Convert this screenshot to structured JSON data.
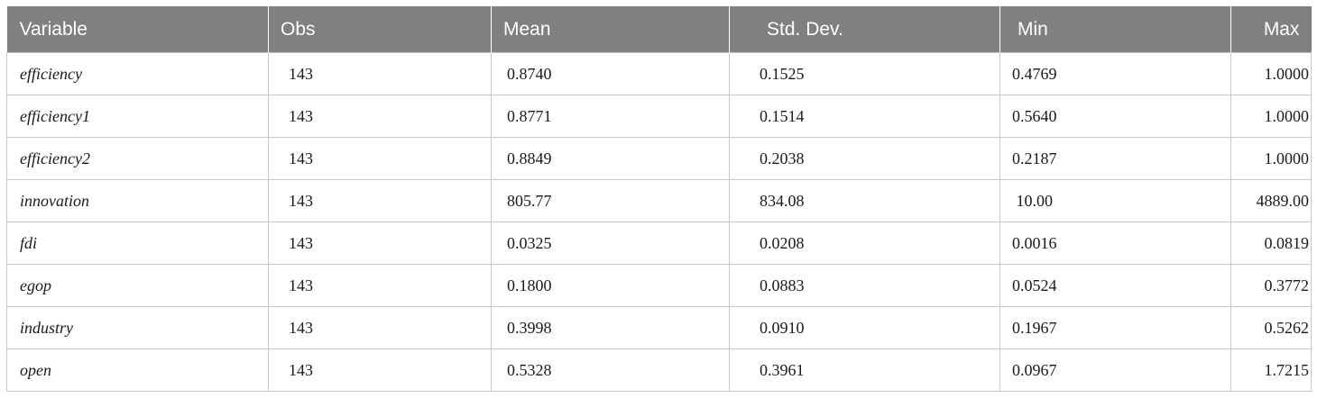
{
  "header": {
    "variable": "Variable",
    "obs": "Obs",
    "mean": "Mean",
    "sd": "Std. Dev.",
    "min": "Min",
    "max": "Max"
  },
  "rows": [
    {
      "variable": "efficiency",
      "obs": "143",
      "mean": "0.8740",
      "sd": "0.1525",
      "min": "0.4769",
      "max": "1.0000"
    },
    {
      "variable": "efficiency1",
      "obs": "143",
      "mean": "0.8771",
      "sd": "0.1514",
      "min": "0.5640",
      "max": "1.0000"
    },
    {
      "variable": "efficiency2",
      "obs": "143",
      "mean": "0.8849",
      "sd": "0.2038",
      "min": "0.2187",
      "max": "1.0000"
    },
    {
      "variable": "innovation",
      "obs": "143",
      "mean": "805.77",
      "sd": "834.08",
      "min": " 10.00",
      "max": "4889.00"
    },
    {
      "variable": "fdi",
      "obs": "143",
      "mean": "0.0325",
      "sd": "0.0208",
      "min": "0.0016",
      "max": "0.0819"
    },
    {
      "variable": "egop",
      "obs": "143",
      "mean": "0.1800",
      "sd": "0.0883",
      "min": "0.0524",
      "max": "0.3772"
    },
    {
      "variable": "industry",
      "obs": "143",
      "mean": "0.3998",
      "sd": "0.0910",
      "min": "0.1967",
      "max": "0.5262"
    },
    {
      "variable": "open",
      "obs": "143",
      "mean": "0.5328",
      "sd": "0.3961",
      "min": "0.0967",
      "max": "1.7215"
    }
  ]
}
